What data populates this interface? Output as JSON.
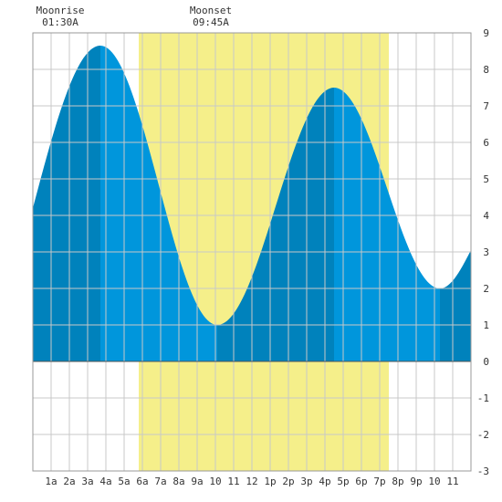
{
  "chart_data": {
    "type": "area",
    "title": "",
    "xlabel": "",
    "ylabel": "",
    "x_range": [
      0,
      24
    ],
    "ylim": [
      -3,
      9
    ],
    "grid": true,
    "x_tick_labels": [
      "1a",
      "2a",
      "3a",
      "4a",
      "5a",
      "6a",
      "7a",
      "8a",
      "9a",
      "10",
      "11",
      "12",
      "1p",
      "2p",
      "3p",
      "4p",
      "5p",
      "6p",
      "7p",
      "8p",
      "9p",
      "10",
      "11"
    ],
    "y_tick_labels": [
      "9",
      "8",
      "7",
      "6",
      "5",
      "4",
      "3",
      "2",
      "1",
      "0",
      "-1",
      "-2",
      "-3"
    ],
    "moon_events": [
      {
        "label": "Moonrise",
        "time": "01:30A",
        "hour": 1.5
      },
      {
        "label": "Moonset",
        "time": "09:45A",
        "hour": 9.75
      }
    ],
    "daylight": {
      "start_hour": 5.8,
      "end_hour": 19.5
    },
    "tide_extremes": [
      {
        "hour": 3.7,
        "height": 8.65,
        "kind": "high"
      },
      {
        "hour": 10.1,
        "height": 1.0,
        "kind": "low"
      },
      {
        "hour": 16.5,
        "height": 7.5,
        "kind": "high"
      },
      {
        "hour": 22.3,
        "height": 2.0,
        "kind": "low"
      }
    ],
    "series": [
      {
        "values": [
          {
            "x": 0.0,
            "y": 4.2
          },
          {
            "x": 3.7,
            "y": 8.65
          },
          {
            "x": 10.1,
            "y": 1.0
          },
          {
            "x": 16.5,
            "y": 7.5
          },
          {
            "x": 22.3,
            "y": 2.0
          },
          {
            "x": 24.0,
            "y": 3.05
          }
        ]
      }
    ]
  },
  "colors": {
    "background": "#ffffff",
    "plot_background": "#ffffff",
    "daylight": "#f5ef8a",
    "grid": "#c8c8c8",
    "tide_light": "#0096dc",
    "tide_dark": "#0082bc",
    "axis_text": "#333333"
  }
}
